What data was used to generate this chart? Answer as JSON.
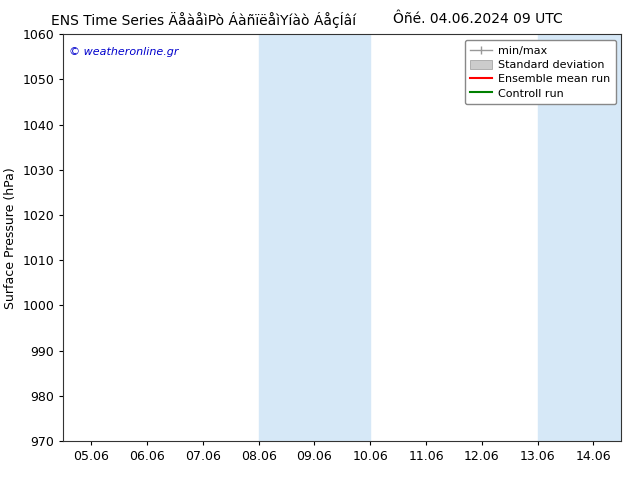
{
  "title_left": "ENS Time Series ÄåàåìPò ÁàñïëåìYíàò ÁåçÍâí",
  "title_right": "Ôñé. 04.06.2024 09 UTC",
  "ylabel": "Surface Pressure (hPa)",
  "xlim_dates": [
    "05.06",
    "06.06",
    "07.06",
    "08.06",
    "09.06",
    "10.06",
    "11.06",
    "12.06",
    "13.06",
    "14.06"
  ],
  "ylim": [
    970,
    1060
  ],
  "yticks": [
    970,
    980,
    990,
    1000,
    1010,
    1020,
    1030,
    1040,
    1050,
    1060
  ],
  "shaded_regions": [
    {
      "x_start": 8.0,
      "x_end": 10.0
    },
    {
      "x_start": 13.0,
      "x_end": 14.5
    }
  ],
  "shade_color": "#d6e8f7",
  "watermark": "© weatheronline.gr",
  "watermark_color": "#0000cc",
  "legend_entries": [
    {
      "label": "min/max"
    },
    {
      "label": "Standard deviation"
    },
    {
      "label": "Ensemble mean run"
    },
    {
      "label": "Controll run"
    }
  ],
  "legend_line_colors": [
    "#999999",
    "#cccccc",
    "#ff0000",
    "#008000"
  ],
  "bg_color": "#ffffff",
  "grid_color": "#cccccc",
  "title_fontsize": 10,
  "ylabel_fontsize": 9,
  "tick_fontsize": 9,
  "legend_fontsize": 8,
  "watermark_fontsize": 8,
  "xlim": [
    4.5,
    14.5
  ],
  "x_positions": [
    5,
    6,
    7,
    8,
    9,
    10,
    11,
    12,
    13,
    14
  ]
}
